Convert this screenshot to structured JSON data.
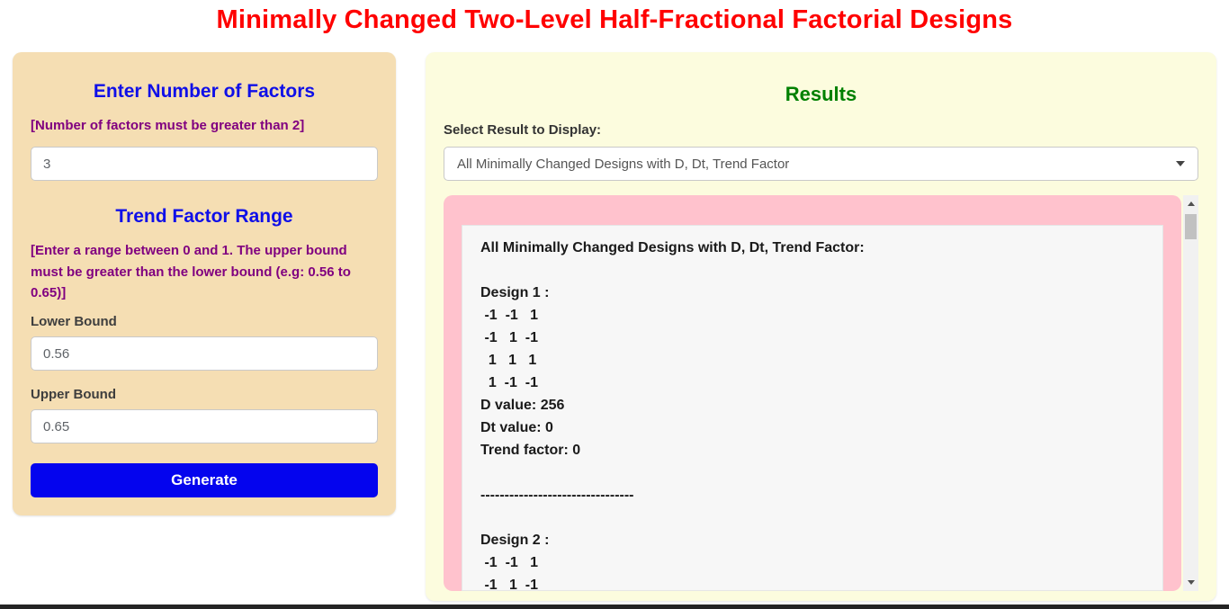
{
  "page": {
    "title": "Minimally Changed Two-Level Half-Fractional Factorial Designs"
  },
  "left_panel": {
    "factors_heading": "Enter Number of Factors",
    "factors_hint": "[Number of factors must be greater than 2]",
    "factors_value": "3",
    "trend_heading": "Trend Factor Range",
    "trend_hint": "[Enter a range between 0 and 1. The upper bound must be greater than the lower bound (e.g: 0.56 to 0.65)]",
    "lower_bound_label": "Lower Bound",
    "lower_bound_value": "0.56",
    "upper_bound_label": "Upper Bound",
    "upper_bound_value": "0.65",
    "generate_label": "Generate"
  },
  "results_panel": {
    "heading": "Results",
    "select_label": "Select Result to Display:",
    "selected_option": "All Minimally Changed Designs with D, Dt, Trend Factor",
    "dropdown_icon": "caret-down-icon",
    "scrollbar_icons": {
      "up": "triangle-up",
      "down": "triangle-down"
    },
    "output": {
      "lines": [
        "All Minimally Changed Designs with D, Dt, Trend Factor:",
        "",
        "Design 1 :",
        " -1  -1   1",
        " -1   1  -1",
        "  1   1   1",
        "  1  -1  -1",
        "D value: 256",
        "Dt value: 0",
        "Trend factor: 0",
        "",
        "--------------------------------",
        "",
        "Design 2 :",
        " -1  -1   1",
        " -1   1  -1"
      ]
    }
  },
  "colors": {
    "title_red": "#ff0000",
    "heading_blue": "#0f0fe8",
    "hint_purple": "#800080",
    "results_green": "#008000",
    "left_panel_bg": "#f5deb3",
    "right_panel_bg": "#fcfcde",
    "output_pink": "#ffc2cd",
    "output_inner_bg": "#f7f7f7",
    "button_blue": "#0404ee",
    "scrollbar_track": "#f1f1f1",
    "scrollbar_thumb": "#c1c1c1"
  }
}
